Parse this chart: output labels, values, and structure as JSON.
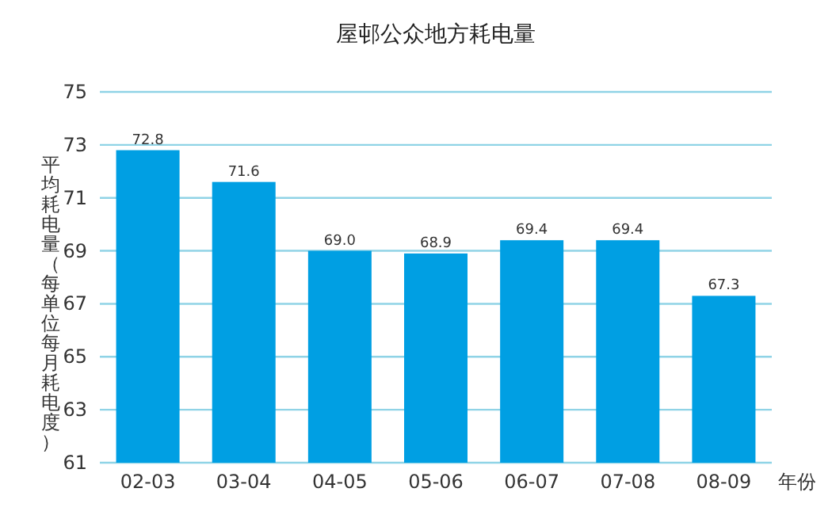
{
  "chart_data": {
    "type": "bar",
    "title": "屋邨公众地方耗电量",
    "xlabel": "年份",
    "ylabel": "平均耗电量（每单位每月耗电度）",
    "categories": [
      "02-03",
      "03-04",
      "04-05",
      "05-06",
      "06-07",
      "07-08",
      "08-09"
    ],
    "values": [
      72.8,
      71.6,
      69.0,
      68.9,
      69.4,
      69.4,
      67.3
    ],
    "value_labels": [
      "72.8",
      "71.6",
      "69.0",
      "68.9",
      "69.4",
      "69.4",
      "67.3"
    ],
    "color": "#009fe3",
    "ylim": [
      61,
      75
    ],
    "yticks": [
      61,
      63,
      65,
      67,
      69,
      71,
      73,
      75
    ],
    "grid": "y"
  }
}
